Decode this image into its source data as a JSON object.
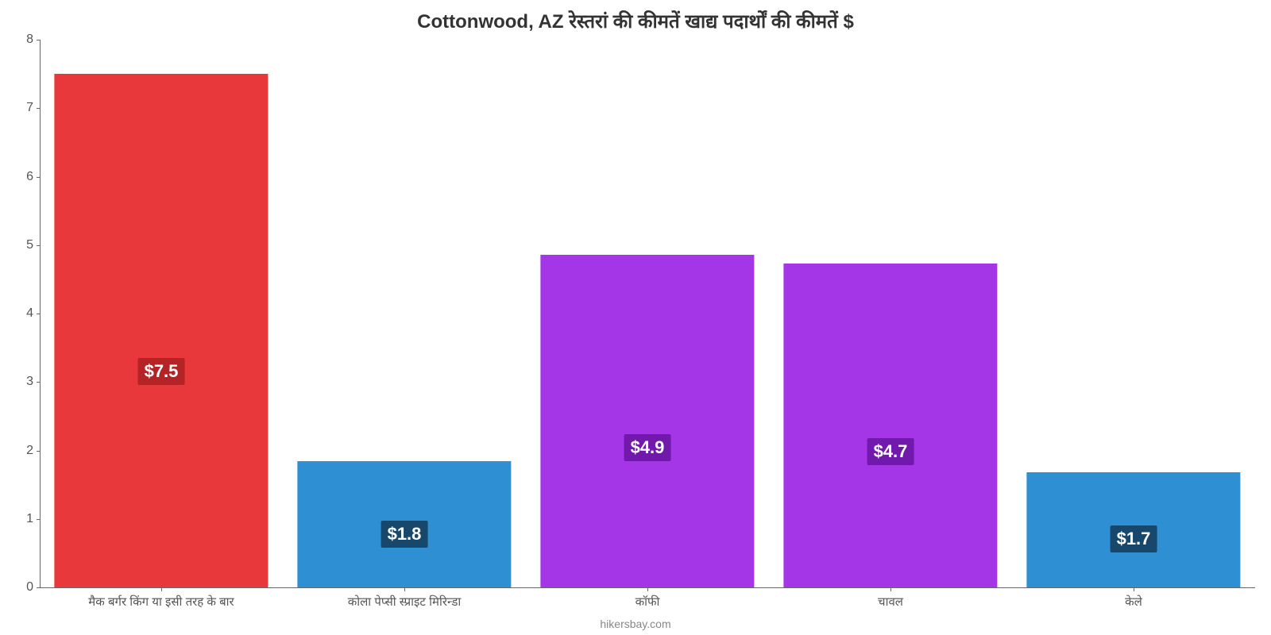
{
  "chart": {
    "type": "bar",
    "title": "Cottonwood, AZ रेस्तरां    की    कीमतें    खाद्य    पदार्थों    की    कीमतें    $",
    "title_fontsize": 24,
    "background_color": "#ffffff",
    "axis_color": "#666666",
    "tick_fontsize": 16,
    "tick_color": "#555555",
    "ylim_min": 0,
    "ylim_max": 8,
    "ytick_step": 1,
    "yticks": [
      0,
      1,
      2,
      3,
      4,
      5,
      6,
      7,
      8
    ],
    "bar_width_ratio": 0.88,
    "value_label_fontsize": 22,
    "value_label_text_color": "#ffffff",
    "categories": [
      "मैक बर्गर किंग या इसी तरह के बार",
      "कोला पेप्सी स्प्राइट मिरिन्डा",
      "कॉफी",
      "चावल",
      "केले"
    ],
    "values": [
      7.5,
      1.84,
      4.86,
      4.73,
      1.68
    ],
    "display_values": [
      "$7.5",
      "$1.8",
      "$4.9",
      "$4.7",
      "$1.7"
    ],
    "bar_colors": [
      "#e8383b",
      "#2f8fd3",
      "#a536e8",
      "#a536e8",
      "#2f8fd3"
    ],
    "value_label_bg": [
      "#b42326",
      "#17486b",
      "#7219ad",
      "#7219ad",
      "#17486b"
    ],
    "footer": "hikersbay.com",
    "footer_color": "#888888",
    "footer_fontsize": 14
  }
}
